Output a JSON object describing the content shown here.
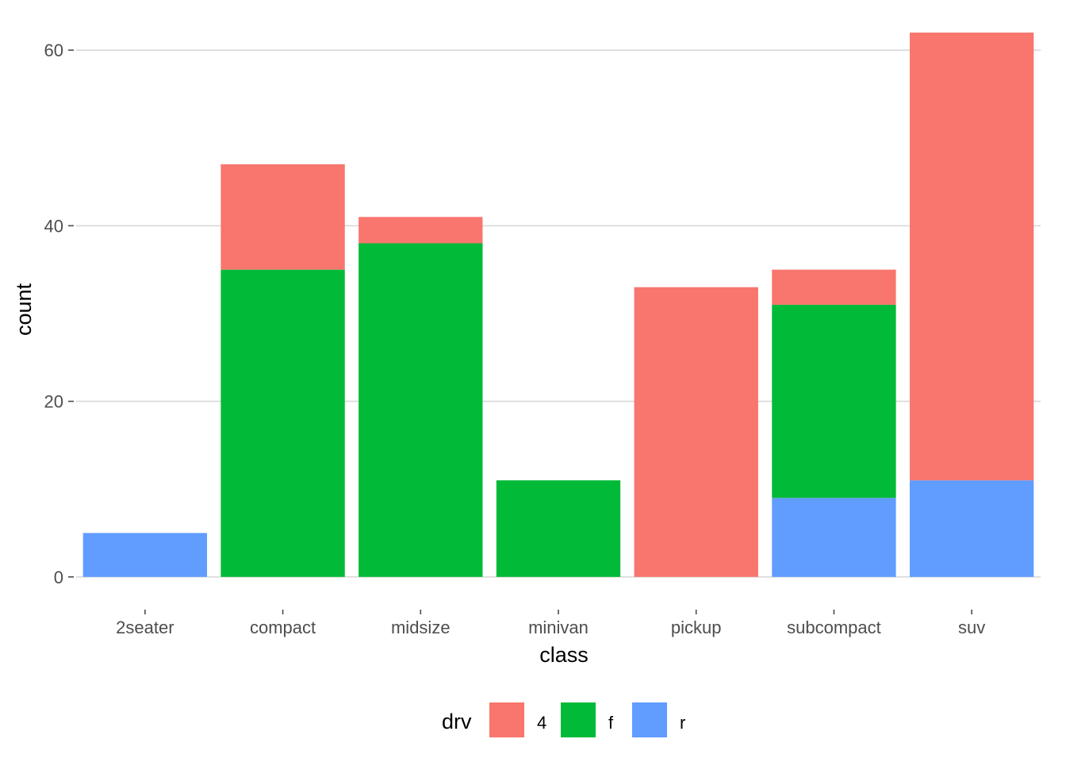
{
  "chart_data": {
    "type": "bar",
    "stacked": true,
    "categories": [
      "2seater",
      "compact",
      "midsize",
      "minivan",
      "pickup",
      "subcompact",
      "suv"
    ],
    "series": [
      {
        "name": "4",
        "color": "#F8766D",
        "values": [
          0,
          12,
          3,
          0,
          33,
          4,
          51
        ]
      },
      {
        "name": "f",
        "color": "#00BA38",
        "values": [
          0,
          35,
          38,
          11,
          0,
          22,
          0
        ]
      },
      {
        "name": "r",
        "color": "#619CFF",
        "values": [
          5,
          0,
          0,
          0,
          0,
          9,
          11
        ]
      }
    ],
    "stack_order_top_to_bottom": [
      "4",
      "f",
      "r"
    ],
    "xlabel": "class",
    "ylabel": "count",
    "ylim": [
      -3,
      63
    ],
    "yticks": [
      0,
      20,
      40,
      60
    ],
    "grid": "horizontal",
    "legend": {
      "title": "drv",
      "position": "bottom",
      "entries": [
        "4",
        "f",
        "r"
      ]
    }
  }
}
